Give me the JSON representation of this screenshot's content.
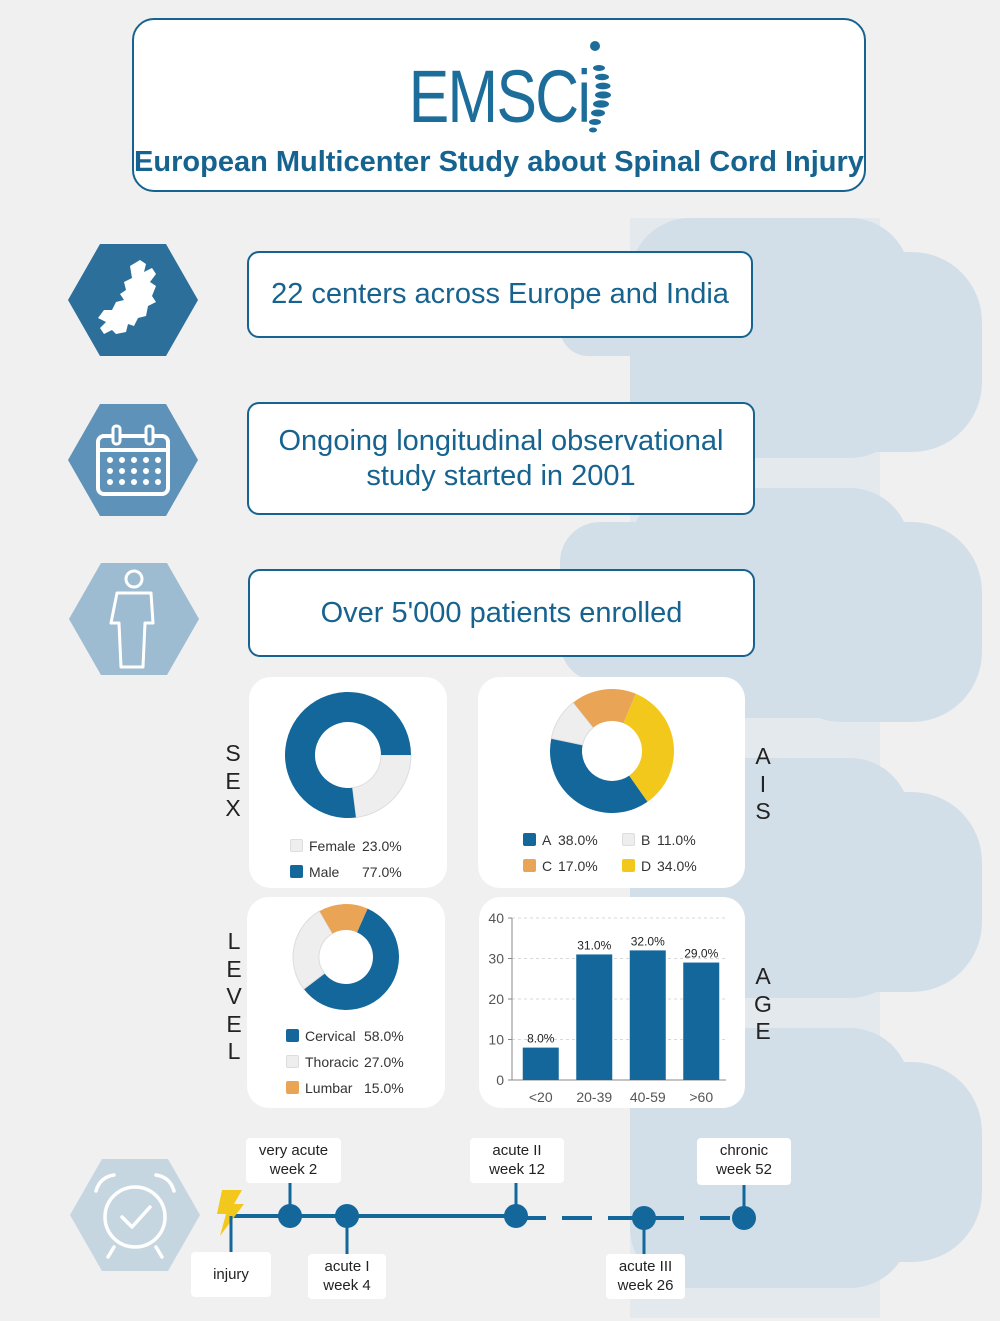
{
  "header": {
    "logo_text": "EMSCi",
    "title": "European Multicenter Study about Spinal Cord Injury"
  },
  "facts": [
    {
      "icon": "europe-map-icon",
      "lines": [
        "22 centers across Europe and India"
      ]
    },
    {
      "icon": "calendar-icon",
      "lines": [
        "Ongoing longitudinal observational",
        "study started in 2001"
      ]
    },
    {
      "icon": "person-icon",
      "lines": [
        "Over 5'000 patients enrolled"
      ]
    }
  ],
  "colors": {
    "primary": "#13679b",
    "light_grey": "#eeeeee",
    "orange": "#e9a456",
    "yellow": "#f3c81d",
    "hex_dark": "#2c6f9a",
    "hex_mid": "#5e92b8",
    "hex_light": "#9dbcd1",
    "hex_pale": "#c5d6e1"
  },
  "chart_labels": {
    "sex": "SEX",
    "ais": "AIS",
    "level": "LEVEL",
    "age": "AGE"
  },
  "chart_data": [
    {
      "type": "pie",
      "variant": "donut",
      "categories": [
        "Female",
        "Male"
      ],
      "values": [
        23.0,
        77.0
      ],
      "value_labels": [
        "23.0%",
        "77.0%"
      ],
      "colors": [
        "#eeeeee",
        "#13679b"
      ],
      "title": "SEX"
    },
    {
      "type": "pie",
      "variant": "donut",
      "categories": [
        "A",
        "B",
        "C",
        "D"
      ],
      "values": [
        38.0,
        11.0,
        17.0,
        34.0
      ],
      "value_labels": [
        "38.0%",
        "11.0%",
        "17.0%",
        "34.0%"
      ],
      "colors": [
        "#13679b",
        "#eeeeee",
        "#e9a456",
        "#f3c81d"
      ],
      "title": "AIS"
    },
    {
      "type": "pie",
      "variant": "donut",
      "categories": [
        "Cervical",
        "Thoracic",
        "Lumbar"
      ],
      "values": [
        58.0,
        27.0,
        15.0
      ],
      "value_labels": [
        "58.0%",
        "27.0%",
        "15.0%"
      ],
      "colors": [
        "#13679b",
        "#eeeeee",
        "#e9a456"
      ],
      "title": "LEVEL"
    },
    {
      "type": "bar",
      "categories": [
        "<20",
        "20-39",
        "40-59",
        ">60"
      ],
      "values": [
        8.0,
        31.0,
        32.0,
        29.0
      ],
      "value_labels": [
        "8.0%",
        "31.0%",
        "32.0%",
        "29.0%"
      ],
      "ylim": [
        0,
        40
      ],
      "yticks": [
        "0",
        "10",
        "20",
        "30",
        "40"
      ],
      "grid": true,
      "title": "AGE"
    }
  ],
  "timeline": {
    "icon": "alarm-clock-icon",
    "start_icon": "lightning-icon",
    "points": [
      {
        "lines": [
          "injury"
        ],
        "week": 0
      },
      {
        "lines": [
          "very acute",
          "week 2"
        ],
        "week": 2
      },
      {
        "lines": [
          "acute I",
          "week 4"
        ],
        "week": 4
      },
      {
        "lines": [
          "acute II",
          "week 12"
        ],
        "week": 12
      },
      {
        "lines": [
          "acute III",
          "week 26"
        ],
        "week": 26
      },
      {
        "lines": [
          "chronic",
          "week 52"
        ],
        "week": 52
      }
    ]
  }
}
